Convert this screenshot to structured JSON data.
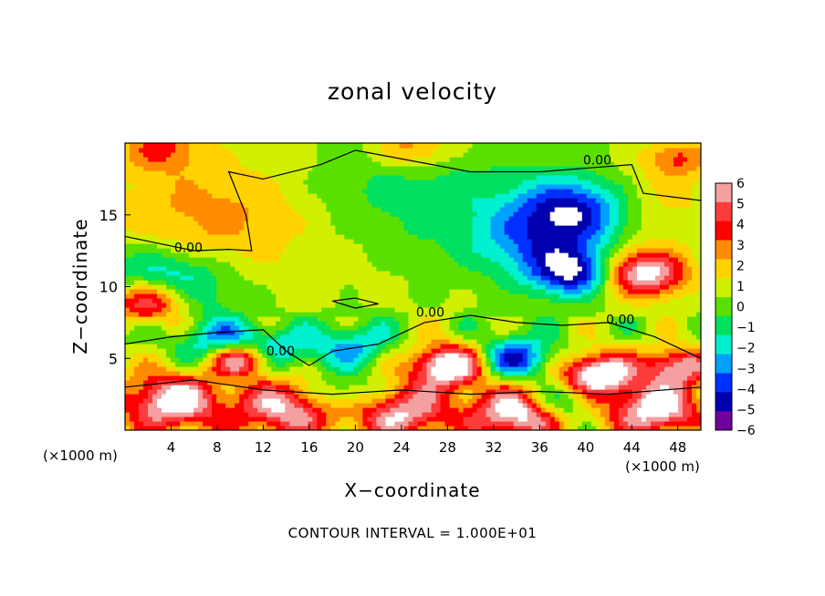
{
  "chart_data": {
    "type": "heatmap",
    "title": "zonal velocity",
    "xlabel": "X−coordinate",
    "ylabel": "Z−coordinate",
    "x_unit": "(×1000 m)",
    "z_unit": "(×1000 m)",
    "footer": "CONTOUR INTERVAL = 1.000E+01",
    "xlim": [
      0,
      50
    ],
    "ylim": [
      0,
      20
    ],
    "xticks": [
      "4",
      "8",
      "12",
      "16",
      "20",
      "24",
      "28",
      "32",
      "36",
      "40",
      "44",
      "48"
    ],
    "yticks": [
      "5",
      "10",
      "15"
    ],
    "colorbar_labels": [
      "6",
      "5",
      "4",
      "3",
      "2",
      "1",
      "0",
      "−1",
      "−2",
      "−3",
      "−4",
      "−5",
      "−6"
    ],
    "colorbar_colors": [
      "#f4a0a0",
      "#ff3c3c",
      "#ff0000",
      "#ff8c00",
      "#ffd200",
      "#d0f000",
      "#5ae000",
      "#00e060",
      "#00f0d0",
      "#00a0ff",
      "#0030ff",
      "#0000b0",
      "#7000a0"
    ],
    "contour_labels": [
      "0.00",
      "0.00",
      "0.00",
      "0.00",
      "0.00"
    ],
    "features": [
      {
        "x": 7,
        "z": 15,
        "v": 2.2,
        "r": 6
      },
      {
        "x": 18,
        "z": 14,
        "v": 0.4,
        "r": 10
      },
      {
        "x": 24,
        "z": 17,
        "v": -1.5,
        "r": 6
      },
      {
        "x": 30,
        "z": 15,
        "v": -0.8,
        "r": 6
      },
      {
        "x": 36,
        "z": 13,
        "v": -3.4,
        "r": 4
      },
      {
        "x": 39,
        "z": 15.5,
        "v": -5.0,
        "r": 3.5
      },
      {
        "x": 39,
        "z": 11,
        "v": -5.5,
        "r": 2.5
      },
      {
        "x": 46,
        "z": 16,
        "v": 1.5,
        "r": 4
      },
      {
        "x": 48,
        "z": 19,
        "v": 3.0,
        "r": 2
      },
      {
        "x": 45,
        "z": 11,
        "v": 7.0,
        "r": 2.6
      },
      {
        "x": 2,
        "z": 9,
        "v": 8.0,
        "r": 2.5
      },
      {
        "x": 3,
        "z": 10,
        "v": -5.0,
        "r": 3.8
      },
      {
        "x": 9,
        "z": 6,
        "v": -4.5,
        "r": 2.5
      },
      {
        "x": 10,
        "z": 5,
        "v": 8.0,
        "r": 1.8
      },
      {
        "x": 14,
        "z": 5.5,
        "v": -2.5,
        "r": 2.5
      },
      {
        "x": 20,
        "z": 6,
        "v": -3.0,
        "r": 2.5
      },
      {
        "x": 28,
        "z": 4.5,
        "v": 8.0,
        "r": 2.3
      },
      {
        "x": 34,
        "z": 5,
        "v": -5.0,
        "r": 2.4
      },
      {
        "x": 41,
        "z": 4,
        "v": 8.0,
        "r": 2.2
      },
      {
        "x": 48,
        "z": 4.5,
        "v": 6.0,
        "r": 2.0
      },
      {
        "x": 4,
        "z": 2,
        "v": 7.0,
        "r": 3.2
      },
      {
        "x": 14,
        "z": 1.5,
        "v": 6.0,
        "r": 3.2
      },
      {
        "x": 24,
        "z": 1.2,
        "v": 6.0,
        "r": 3
      },
      {
        "x": 34,
        "z": 1.2,
        "v": 7.0,
        "r": 3
      },
      {
        "x": 46,
        "z": 1.5,
        "v": 7.0,
        "r": 3
      },
      {
        "x": 19,
        "z": 2.5,
        "v": -3.0,
        "r": 2
      },
      {
        "x": 38,
        "z": 2,
        "v": -3.5,
        "r": 2
      },
      {
        "x": 25,
        "z": 19.7,
        "v": 3.0,
        "r": 2.5
      },
      {
        "x": 3,
        "z": 19.7,
        "v": 3.0,
        "r": 2.5
      }
    ]
  }
}
